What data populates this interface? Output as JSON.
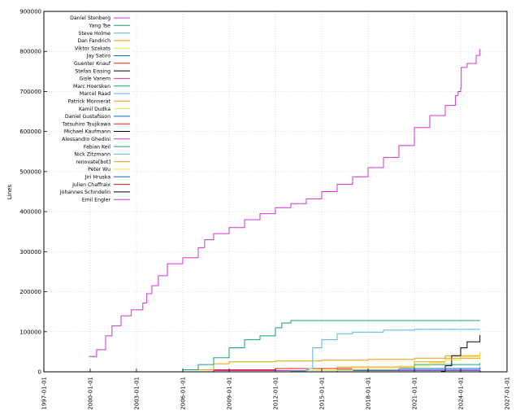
{
  "chart_data": {
    "type": "line",
    "title": "",
    "xlabel": "",
    "ylabel": "Lines",
    "x_ticks": [
      "1997-01-01",
      "2000-01-01",
      "2003-01-01",
      "2006-01-01",
      "2009-01-01",
      "2012-01-01",
      "2015-01-01",
      "2018-01-01",
      "2021-01-01",
      "2024-01-01",
      "2027-01-01"
    ],
    "xlim": [
      "1997-01-01",
      "2027-01-01"
    ],
    "ylim": [
      0,
      900000
    ],
    "y_ticks": [
      0,
      100000,
      200000,
      300000,
      400000,
      500000,
      600000,
      700000,
      800000,
      900000
    ],
    "grid": true,
    "legend_position": "top-left",
    "series": [
      {
        "name": "Daniel Stenberg",
        "color": "#cc33cc",
        "points": [
          [
            "1999-12-01",
            38000
          ],
          [
            "2000-06-01",
            55000
          ],
          [
            "2001-01-01",
            90000
          ],
          [
            "2001-06-01",
            115000
          ],
          [
            "2002-01-01",
            140000
          ],
          [
            "2002-09-01",
            155000
          ],
          [
            "2003-06-01",
            172000
          ],
          [
            "2003-09-01",
            195000
          ],
          [
            "2004-01-01",
            215000
          ],
          [
            "2004-06-01",
            240000
          ],
          [
            "2005-01-01",
            270000
          ],
          [
            "2006-01-01",
            285000
          ],
          [
            "2007-01-01",
            310000
          ],
          [
            "2007-06-01",
            330000
          ],
          [
            "2008-01-01",
            345000
          ],
          [
            "2009-01-01",
            360000
          ],
          [
            "2010-01-01",
            380000
          ],
          [
            "2011-01-01",
            395000
          ],
          [
            "2012-01-01",
            410000
          ],
          [
            "2013-01-01",
            420000
          ],
          [
            "2014-01-01",
            432000
          ],
          [
            "2015-01-01",
            450000
          ],
          [
            "2016-01-01",
            468000
          ],
          [
            "2017-01-01",
            487000
          ],
          [
            "2018-01-01",
            510000
          ],
          [
            "2019-01-01",
            535000
          ],
          [
            "2020-01-01",
            565000
          ],
          [
            "2021-01-01",
            610000
          ],
          [
            "2022-01-01",
            640000
          ],
          [
            "2023-01-01",
            665000
          ],
          [
            "2023-09-01",
            690000
          ],
          [
            "2023-11-01",
            700000
          ],
          [
            "2024-01-01",
            708000
          ],
          [
            "2024-01-15",
            760000
          ],
          [
            "2024-06-01",
            770000
          ],
          [
            "2025-01-01",
            790000
          ],
          [
            "2025-04-01",
            806000
          ]
        ]
      },
      {
        "name": "Yang Tse",
        "color": "#1a9e78",
        "points": [
          [
            "2005-01-01",
            0
          ],
          [
            "2006-01-01",
            5000
          ],
          [
            "2007-01-01",
            18000
          ],
          [
            "2008-01-01",
            35000
          ],
          [
            "2009-01-01",
            60000
          ],
          [
            "2010-01-01",
            80000
          ],
          [
            "2011-01-01",
            90000
          ],
          [
            "2012-01-01",
            110000
          ],
          [
            "2012-06-01",
            122000
          ],
          [
            "2013-01-01",
            128000
          ],
          [
            "2025-04-01",
            128000
          ]
        ]
      },
      {
        "name": "Steve Holme",
        "color": "#56b4e9",
        "points": [
          [
            "2011-01-01",
            0
          ],
          [
            "2013-01-01",
            2000
          ],
          [
            "2014-01-01",
            5000
          ],
          [
            "2014-03-01",
            8000
          ],
          [
            "2014-06-01",
            60000
          ],
          [
            "2015-01-01",
            80000
          ],
          [
            "2016-01-01",
            95000
          ],
          [
            "2017-01-01",
            99000
          ],
          [
            "2019-01-01",
            104000
          ],
          [
            "2021-01-01",
            106000
          ],
          [
            "2025-04-01",
            106000
          ]
        ]
      },
      {
        "name": "Dan Fandrich",
        "color": "#e69f00",
        "points": [
          [
            "2004-01-01",
            0
          ],
          [
            "2006-01-01",
            5000
          ],
          [
            "2008-01-01",
            20000
          ],
          [
            "2009-01-01",
            25000
          ],
          [
            "2012-01-01",
            27000
          ],
          [
            "2015-01-01",
            29000
          ],
          [
            "2018-01-01",
            31000
          ],
          [
            "2021-01-01",
            34000
          ],
          [
            "2025-04-01",
            36000
          ]
        ]
      },
      {
        "name": "Viktor Szakats",
        "color": "#f0e442",
        "points": [
          [
            "2010-01-01",
            0
          ],
          [
            "2014-01-01",
            3000
          ],
          [
            "2017-01-01",
            8000
          ],
          [
            "2020-01-01",
            14000
          ],
          [
            "2022-01-01",
            22000
          ],
          [
            "2023-01-01",
            30000
          ],
          [
            "2024-01-01",
            38000
          ],
          [
            "2025-04-01",
            45000
          ]
        ]
      },
      {
        "name": "Jay Satiro",
        "color": "#0072b2",
        "points": [
          [
            "2012-01-01",
            0
          ],
          [
            "2016-01-01",
            4000
          ],
          [
            "2020-01-01",
            8000
          ],
          [
            "2025-04-01",
            12000
          ]
        ]
      },
      {
        "name": "Guenter Knauf",
        "color": "#e51e10",
        "points": [
          [
            "2004-01-01",
            0
          ],
          [
            "2008-01-01",
            5000
          ],
          [
            "2012-01-01",
            8000
          ],
          [
            "2025-04-01",
            9000
          ]
        ]
      },
      {
        "name": "Stefan Eissing",
        "color": "#000000",
        "points": [
          [
            "2020-01-01",
            0
          ],
          [
            "2022-10-01",
            1000
          ],
          [
            "2023-01-01",
            15000
          ],
          [
            "2023-06-01",
            40000
          ],
          [
            "2024-01-01",
            60000
          ],
          [
            "2024-06-01",
            75000
          ],
          [
            "2025-04-01",
            92000
          ]
        ]
      },
      {
        "name": "Gisle Vanem",
        "color": "#cc33cc",
        "points": [
          [
            "2002-01-01",
            0
          ],
          [
            "2008-01-01",
            3000
          ],
          [
            "2025-04-01",
            5000
          ]
        ]
      },
      {
        "name": "Marc Hoersken",
        "color": "#1a9e78",
        "points": [
          [
            "2011-01-01",
            0
          ],
          [
            "2018-01-01",
            8000
          ],
          [
            "2021-01-01",
            18000
          ],
          [
            "2025-04-01",
            22000
          ]
        ]
      },
      {
        "name": "Marcel Raad",
        "color": "#56b4e9",
        "points": [
          [
            "2016-01-01",
            0
          ],
          [
            "2020-01-01",
            5000
          ],
          [
            "2025-04-01",
            7000
          ]
        ]
      },
      {
        "name": "Patrick Monnerat",
        "color": "#e69f00",
        "points": [
          [
            "2007-01-01",
            0
          ],
          [
            "2016-01-01",
            12000
          ],
          [
            "2021-01-01",
            25000
          ],
          [
            "2023-01-01",
            40000
          ],
          [
            "2025-04-01",
            48000
          ]
        ]
      },
      {
        "name": "Kamil Dudka",
        "color": "#f0e442",
        "points": [
          [
            "2009-01-01",
            0
          ],
          [
            "2015-01-01",
            3000
          ],
          [
            "2025-04-01",
            4000
          ]
        ]
      },
      {
        "name": "Daniel Gustafsson",
        "color": "#0072b2",
        "points": [
          [
            "2018-01-01",
            0
          ],
          [
            "2025-04-01",
            5000
          ]
        ]
      },
      {
        "name": "Tatsuhiro Tsujikawa",
        "color": "#e51e10",
        "points": [
          [
            "2013-01-01",
            0
          ],
          [
            "2025-04-01",
            4000
          ]
        ]
      },
      {
        "name": "Michael Kaufmann",
        "color": "#000000",
        "points": [
          [
            "2015-01-01",
            0
          ],
          [
            "2025-04-01",
            3000
          ]
        ]
      },
      {
        "name": "Alessandro Ghedini",
        "color": "#cc33cc",
        "points": [
          [
            "2014-01-01",
            0
          ],
          [
            "2025-04-01",
            3000
          ]
        ]
      },
      {
        "name": "Fabian Keil",
        "color": "#1a9e78",
        "points": [
          [
            "2014-01-01",
            0
          ],
          [
            "2025-04-01",
            2500
          ]
        ]
      },
      {
        "name": "Nick Zitzmann",
        "color": "#56b4e9",
        "points": [
          [
            "2011-01-01",
            0
          ],
          [
            "2025-04-01",
            2500
          ]
        ]
      },
      {
        "name": "renovate[bot]",
        "color": "#e69f00",
        "points": [
          [
            "2023-01-01",
            0
          ],
          [
            "2025-04-01",
            2000
          ]
        ]
      },
      {
        "name": "Peter Wu",
        "color": "#f0e442",
        "points": [
          [
            "2014-01-01",
            0
          ],
          [
            "2025-04-01",
            2000
          ]
        ]
      },
      {
        "name": "Jiri Hruska",
        "color": "#0072b2",
        "points": [
          [
            "2013-01-01",
            0
          ],
          [
            "2025-04-01",
            1500
          ]
        ]
      },
      {
        "name": "Julien Chaffraix",
        "color": "#e51e10",
        "points": [
          [
            "2010-01-01",
            0
          ],
          [
            "2025-04-01",
            1500
          ]
        ]
      },
      {
        "name": "Johannes Schindelin",
        "color": "#000000",
        "points": [
          [
            "2018-01-01",
            0
          ],
          [
            "2025-04-01",
            1500
          ]
        ]
      },
      {
        "name": "Emil Engler",
        "color": "#cc33cc",
        "points": [
          [
            "2020-01-01",
            0
          ],
          [
            "2025-04-01",
            1200
          ]
        ]
      }
    ]
  }
}
